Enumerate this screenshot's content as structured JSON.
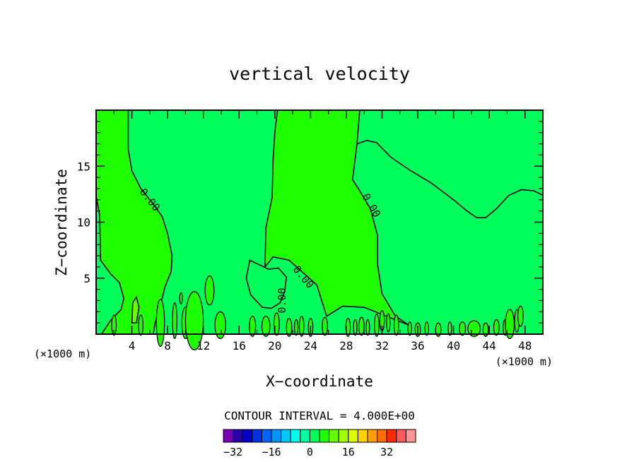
{
  "chart_data": {
    "type": "contour",
    "title": "vertical velocity",
    "xlabel": "X−coordinate",
    "ylabel": "Z−coordinate",
    "x_unit_left": "(×1000 m)",
    "x_unit_right": "(×1000 m)",
    "xlim": [
      0,
      50
    ],
    "ylim": [
      0,
      20
    ],
    "x_ticks": [
      4,
      8,
      12,
      16,
      20,
      24,
      28,
      32,
      36,
      40,
      44,
      48
    ],
    "y_ticks": [
      5,
      10,
      15
    ],
    "contour_labels": [
      {
        "text": "0.00",
        "x": 6,
        "y": 12,
        "angle": 52
      },
      {
        "text": "0.00",
        "x": 30.8,
        "y": 11.5,
        "angle": 60
      },
      {
        "text": "0.00",
        "x": 23.2,
        "y": 5.1,
        "angle": 50
      },
      {
        "text": "0.00",
        "x": 20.8,
        "y": 3.0,
        "angle": -90
      }
    ],
    "contour_interval_text": "CONTOUR INTERVAL = 4.000E+00",
    "colorbar": {
      "min": -36,
      "step": 4,
      "colors": [
        "#7a00b8",
        "#2a00a8",
        "#0000c8",
        "#0032e6",
        "#0064ff",
        "#0096ff",
        "#00c8ff",
        "#00ffe6",
        "#00ffa0",
        "#00ff5a",
        "#1eff00",
        "#64ff00",
        "#a0ff00",
        "#dcff00",
        "#ffd200",
        "#ffa000",
        "#ff6e00",
        "#ff2800",
        "#ff5a5a",
        "#ff9696"
      ],
      "tick_values": [
        -32,
        -16,
        0,
        16,
        32
      ],
      "tick_labels": [
        "−32",
        "−16",
        "0",
        "16",
        "32"
      ]
    },
    "field_colors": {
      "positive": "#1eff00",
      "negative": "#00ff5a",
      "strong": "#64ff00"
    }
  }
}
